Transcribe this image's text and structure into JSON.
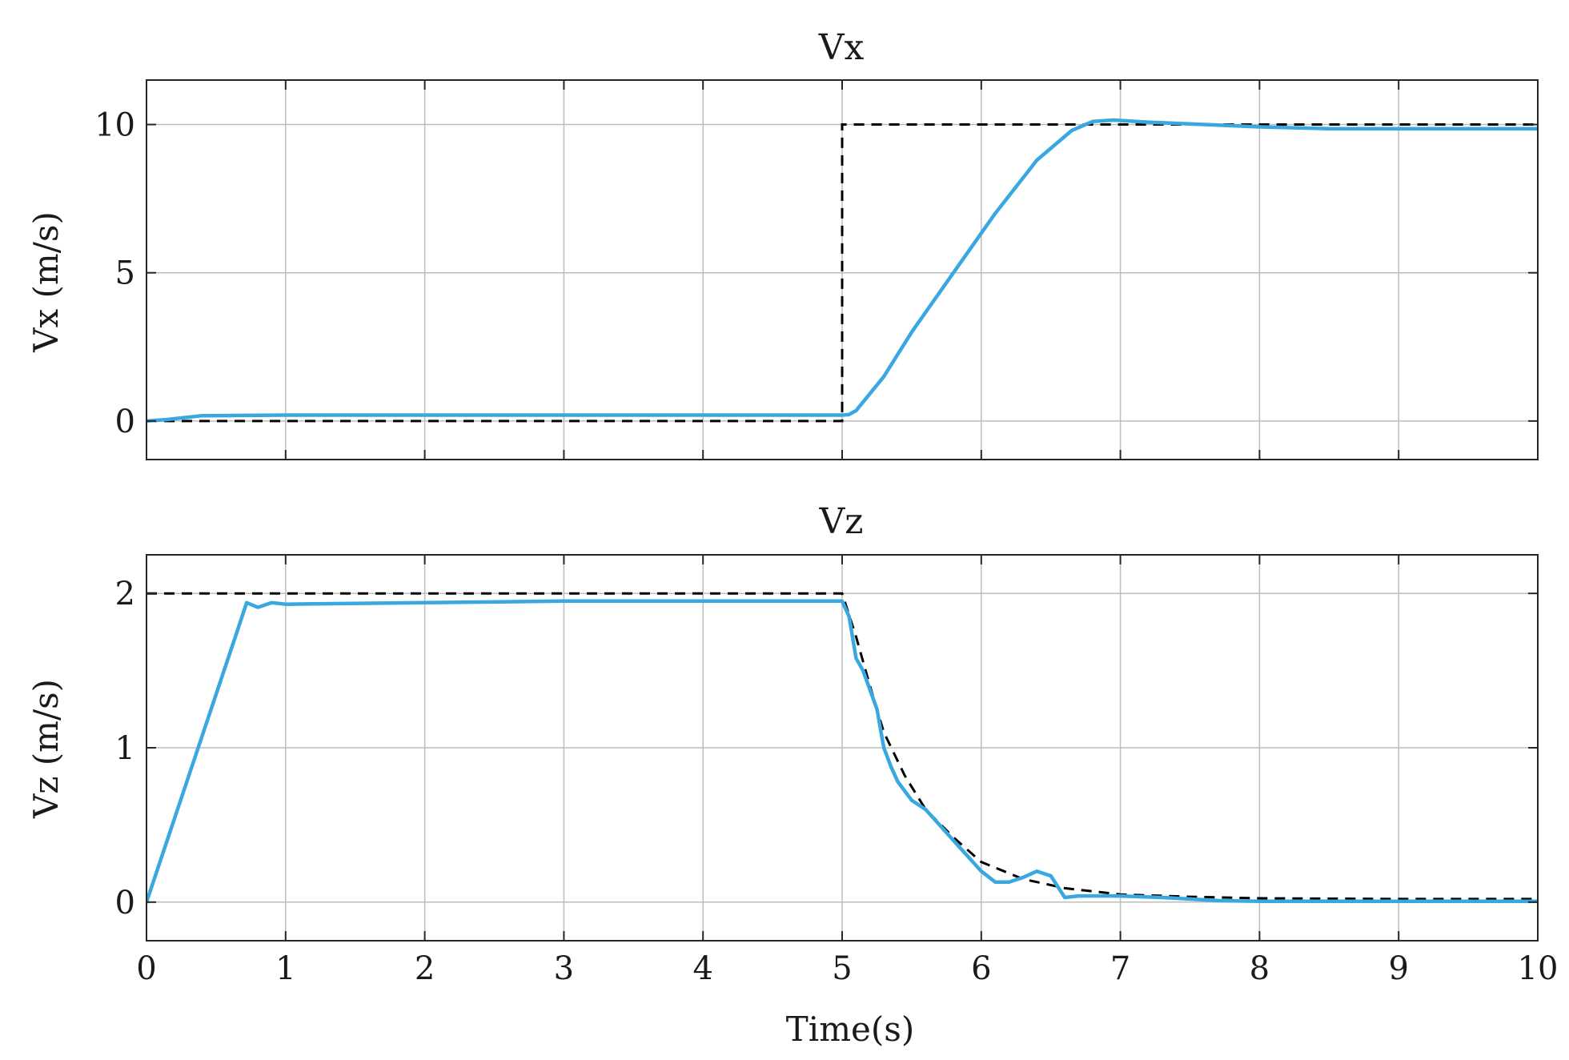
{
  "chart_data": [
    {
      "type": "line",
      "title": "Vx",
      "xlabel": "",
      "ylabel": "Vx (m/s)",
      "xlim": [
        0,
        10
      ],
      "ylim": [
        -1.3,
        11.5
      ],
      "xticks": [
        0,
        1,
        2,
        3,
        4,
        5,
        6,
        7,
        8,
        9,
        10
      ],
      "yticks": [
        0,
        5,
        10
      ],
      "show_x_tick_labels": false,
      "grid": true,
      "legend": "none",
      "series": [
        {
          "style": "dashed",
          "color": "#000000",
          "x": [
            0,
            5,
            5,
            10
          ],
          "y": [
            0,
            0,
            10,
            10
          ]
        },
        {
          "style": "solid",
          "color": "#3aa8e0",
          "x": [
            0,
            0.15,
            0.4,
            1,
            2,
            3,
            4,
            5,
            5.05,
            5.1,
            5.3,
            5.5,
            5.8,
            6.1,
            6.4,
            6.65,
            6.8,
            6.95,
            7.2,
            7.6,
            8,
            8.5,
            9,
            10
          ],
          "y": [
            0,
            0.05,
            0.18,
            0.2,
            0.2,
            0.2,
            0.2,
            0.2,
            0.22,
            0.35,
            1.5,
            3.0,
            5.0,
            7.0,
            8.8,
            9.8,
            10.1,
            10.15,
            10.08,
            10.0,
            9.92,
            9.86,
            9.86,
            9.86
          ]
        }
      ]
    },
    {
      "type": "line",
      "title": "Vz",
      "xlabel": "Time(s)",
      "ylabel": "Vz (m/s)",
      "xlim": [
        0,
        10
      ],
      "ylim": [
        -0.25,
        2.25
      ],
      "xticks": [
        0,
        1,
        2,
        3,
        4,
        5,
        6,
        7,
        8,
        9,
        10
      ],
      "yticks": [
        0,
        1,
        2
      ],
      "show_x_tick_labels": true,
      "grid": true,
      "legend": "none",
      "series": [
        {
          "style": "dashed",
          "color": "#000000",
          "x": [
            0,
            5,
            5.1,
            5.2,
            5.3,
            5.45,
            5.6,
            5.8,
            6.0,
            6.3,
            6.6,
            7.0,
            7.5,
            8,
            9,
            10
          ],
          "y": [
            2,
            2,
            1.72,
            1.4,
            1.1,
            0.82,
            0.6,
            0.42,
            0.26,
            0.15,
            0.09,
            0.05,
            0.035,
            0.025,
            0.02,
            0.02
          ]
        },
        {
          "style": "solid",
          "color": "#3aa8e0",
          "x": [
            0,
            0.65,
            0.72,
            0.8,
            0.9,
            1,
            2,
            3,
            4,
            5,
            5.05,
            5.1,
            5.15,
            5.25,
            5.3,
            5.35,
            5.4,
            5.5,
            5.6,
            5.7,
            5.8,
            5.9,
            6.0,
            6.1,
            6.2,
            6.3,
            6.4,
            6.5,
            6.6,
            6.7,
            6.8,
            7.0,
            7.3,
            7.7,
            8,
            9,
            10
          ],
          "y": [
            0,
            1.75,
            1.94,
            1.91,
            1.94,
            1.93,
            1.94,
            1.95,
            1.95,
            1.95,
            1.85,
            1.58,
            1.5,
            1.25,
            1.0,
            0.88,
            0.78,
            0.66,
            0.6,
            0.5,
            0.4,
            0.3,
            0.2,
            0.13,
            0.13,
            0.16,
            0.2,
            0.17,
            0.03,
            0.04,
            0.04,
            0.04,
            0.03,
            0.01,
            0.005,
            0.005,
            0.005
          ]
        }
      ]
    }
  ]
}
